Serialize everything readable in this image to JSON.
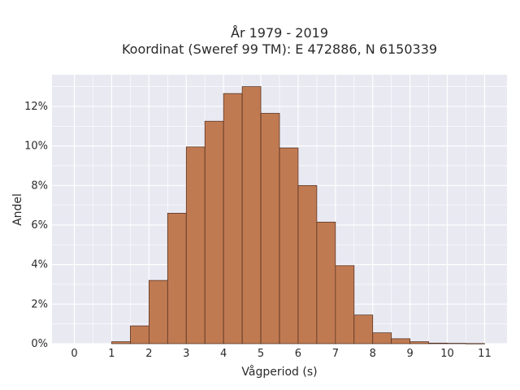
{
  "chart_data": {
    "type": "bar",
    "title": "År 1979 - 2019",
    "subtitle": "Koordinat (Sweref 99 TM): E 472886, N 6150339",
    "xlabel": "Vågperiod (s)",
    "ylabel": "Andel",
    "x_ticks": [
      "0",
      "1",
      "2",
      "3",
      "4",
      "5",
      "6",
      "7",
      "8",
      "9",
      "10",
      "11"
    ],
    "y_ticks": [
      "0%",
      "2%",
      "4%",
      "6%",
      "8%",
      "10%",
      "12%"
    ],
    "xlim": [
      -0.6,
      11.6
    ],
    "ylim": [
      0,
      13.6
    ],
    "bin_width": 0.5,
    "bins": [
      {
        "start": 1.0,
        "value": 0.1
      },
      {
        "start": 1.5,
        "value": 0.9
      },
      {
        "start": 2.0,
        "value": 3.2
      },
      {
        "start": 2.5,
        "value": 6.6
      },
      {
        "start": 3.0,
        "value": 9.95
      },
      {
        "start": 3.5,
        "value": 11.25
      },
      {
        "start": 4.0,
        "value": 12.65
      },
      {
        "start": 4.5,
        "value": 13.0
      },
      {
        "start": 5.0,
        "value": 11.65
      },
      {
        "start": 5.5,
        "value": 9.9
      },
      {
        "start": 6.0,
        "value": 8.0
      },
      {
        "start": 6.5,
        "value": 6.15
      },
      {
        "start": 7.0,
        "value": 3.95
      },
      {
        "start": 7.5,
        "value": 1.45
      },
      {
        "start": 8.0,
        "value": 0.55
      },
      {
        "start": 8.5,
        "value": 0.25
      },
      {
        "start": 9.0,
        "value": 0.1
      },
      {
        "start": 9.5,
        "value": 0.03
      },
      {
        "start": 10.0,
        "value": 0.02
      },
      {
        "start": 10.5,
        "value": 0.01
      }
    ],
    "grid": true,
    "colors": {
      "bar": "#c07a52",
      "bar_edge": "#4a2a1a",
      "plot_bg": "#e9e9f2",
      "grid": "#ffffff"
    }
  }
}
